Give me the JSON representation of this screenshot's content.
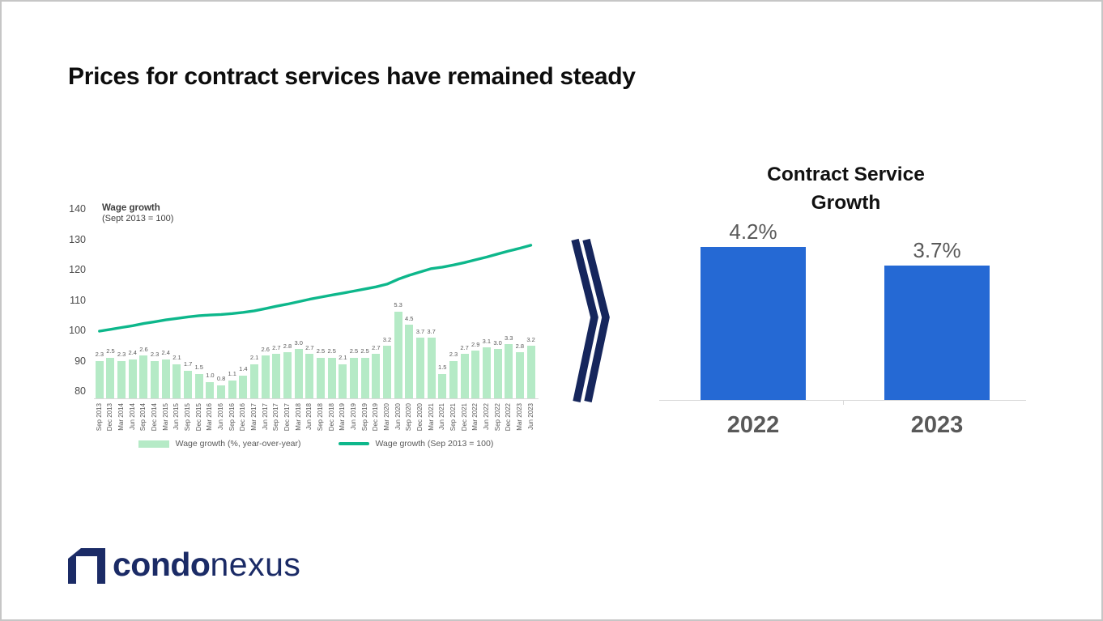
{
  "slide": {
    "title": "Prices for contract services have remained steady"
  },
  "wage_chart": {
    "header": {
      "line1": "Wage growth",
      "line2": "(Sept 2013 = 100)"
    }
  },
  "chart_data": [
    {
      "type": "bar+line",
      "title": "Wage growth (Sept 2013 = 100)",
      "categories": [
        "Sep 2013",
        "Dec 2013",
        "Mar 2014",
        "Jun 2014",
        "Sep 2014",
        "Dec 2014",
        "Mar 2015",
        "Jun 2015",
        "Sep 2015",
        "Dec 2015",
        "Mar 2016",
        "Jun 2016",
        "Sep 2016",
        "Dec 2016",
        "Mar 2017",
        "Jun 2017",
        "Sep 2017",
        "Dec 2017",
        "Mar 2018",
        "Jun 2018",
        "Sep 2018",
        "Dec 2018",
        "Mar 2019",
        "Jun 2019",
        "Sep 2019",
        "Dec 2019",
        "Mar 2020",
        "Jun 2020",
        "Sep 2020",
        "Dec 2020",
        "Mar 2021",
        "Jun 2021",
        "Sep 2021",
        "Dec 2021",
        "Mar 2022",
        "Jun 2022",
        "Sep 2022",
        "Dec 2022",
        "Mar 2023",
        "Jun 2023"
      ],
      "series": [
        {
          "name": "Wage growth (%, year-over-year)",
          "type": "bar",
          "color": "#b5eac6",
          "values": [
            2.3,
            2.5,
            2.3,
            2.4,
            2.6,
            2.3,
            2.4,
            2.1,
            1.7,
            1.5,
            1.0,
            0.8,
            1.1,
            1.4,
            2.1,
            2.6,
            2.7,
            2.8,
            3.0,
            2.7,
            2.5,
            2.5,
            2.1,
            2.5,
            2.5,
            2.7,
            3.2,
            5.3,
            4.5,
            3.7,
            3.7,
            1.5,
            2.3,
            2.7,
            2.9,
            3.1,
            3.0,
            3.3,
            2.8,
            3.2
          ]
        },
        {
          "name": "Wage growth (Sep 2013 = 100)",
          "type": "line",
          "color": "#0db78b",
          "values": [
            100,
            100.6,
            101.2,
            101.8,
            102.5,
            103.1,
            103.7,
            104.2,
            104.7,
            105.1,
            105.3,
            105.5,
            105.8,
            106.2,
            106.7,
            107.4,
            108.2,
            108.9,
            109.7,
            110.5,
            111.2,
            111.9,
            112.5,
            113.2,
            113.9,
            114.6,
            115.5,
            117.1,
            118.4,
            119.5,
            120.6,
            121.1,
            121.8,
            122.6,
            123.5,
            124.4,
            125.4,
            126.4,
            127.3,
            128.3
          ]
        }
      ],
      "y_ticks": [
        140,
        130,
        120,
        110,
        100,
        90,
        80
      ],
      "ylim": [
        80,
        140
      ],
      "grid": false,
      "legend_position": "bottom"
    },
    {
      "type": "bar",
      "title": "Contract Service Growth",
      "categories": [
        "2022",
        "2023"
      ],
      "values": [
        4.2,
        3.7
      ],
      "labels": [
        "4.2%",
        "3.7%"
      ],
      "bar_color": "#2569d4",
      "grid": false
    }
  ],
  "transition": {
    "icon": "double-chevron-right",
    "color": "#16265c"
  },
  "logo": {
    "bold": "condo",
    "light": "nexus",
    "color": "#1b2b66"
  }
}
